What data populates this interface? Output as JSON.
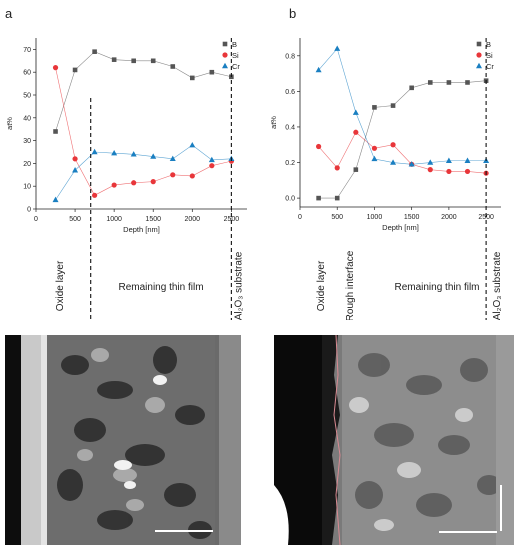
{
  "panels": [
    {
      "letter": "a"
    },
    {
      "letter": "b"
    }
  ],
  "chart_data": [
    {
      "type": "line",
      "xlabel": "Depth [nm]",
      "ylabel": "at%",
      "xlim": [
        0,
        2700
      ],
      "ylim": [
        0,
        75
      ],
      "xticks": [
        0,
        500,
        1000,
        1500,
        2000,
        2500
      ],
      "yticks": [
        0,
        10,
        20,
        30,
        40,
        50,
        60,
        70
      ],
      "x": [
        250,
        500,
        750,
        1000,
        1250,
        1500,
        1750,
        2000,
        2250,
        2500
      ],
      "series": [
        {
          "name": "B",
          "color": "#555555",
          "marker": "square",
          "values": [
            34,
            61,
            69,
            65.5,
            65,
            65,
            62.5,
            57.5,
            60,
            58
          ]
        },
        {
          "name": "Si",
          "color": "#e8363a",
          "marker": "circle",
          "values": [
            62,
            22,
            6,
            10.5,
            11.5,
            12,
            15,
            14.5,
            19,
            21
          ]
        },
        {
          "name": "Cr",
          "color": "#1a7fc1",
          "marker": "triangle",
          "values": [
            4,
            17,
            25,
            24.5,
            24,
            23,
            22,
            28,
            21.5,
            22
          ]
        }
      ],
      "legend": "top-right",
      "grid": false,
      "dashed_boundaries_x": [
        700,
        2500
      ],
      "region_labels": [
        "Oxide layer",
        "Remaining thin film",
        "Al₂O₃ substrate"
      ]
    },
    {
      "type": "line",
      "xlabel": "Depth [nm]",
      "ylabel": "at%",
      "xlim": [
        0,
        2700
      ],
      "ylim": [
        -0.05,
        0.9
      ],
      "xticks": [
        0,
        500,
        1000,
        1500,
        2000,
        2500
      ],
      "yticks": [
        0.0,
        0.2,
        0.4,
        0.6,
        0.8
      ],
      "yticklabels": [
        "0.0",
        "0.2",
        "0.4",
        "0.6",
        "0.8"
      ],
      "x": [
        250,
        500,
        750,
        1000,
        1250,
        1500,
        1750,
        2000,
        2250,
        2500
      ],
      "series": [
        {
          "name": "B",
          "color": "#555555",
          "marker": "square",
          "values": [
            0.0,
            0.0,
            0.16,
            0.51,
            0.52,
            0.62,
            0.65,
            0.65,
            0.65,
            0.66
          ]
        },
        {
          "name": "Si",
          "color": "#e8363a",
          "marker": "circle",
          "values": [
            0.29,
            0.17,
            0.37,
            0.28,
            0.3,
            0.19,
            0.16,
            0.15,
            0.15,
            0.14
          ]
        },
        {
          "name": "Cr",
          "color": "#1a7fc1",
          "marker": "triangle",
          "values": [
            0.72,
            0.84,
            0.48,
            0.22,
            0.2,
            0.19,
            0.2,
            0.21,
            0.21,
            0.21
          ]
        }
      ],
      "legend": "top-right",
      "grid": false,
      "dashed_boundaries_x": [
        2500
      ],
      "region_labels": [
        "Oxide layer",
        "Rough interface",
        "Remaining thin film",
        "Al₂O₃ substrate"
      ]
    }
  ]
}
